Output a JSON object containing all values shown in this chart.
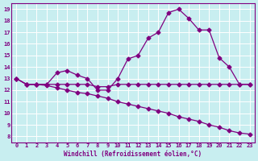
{
  "xlabel": "Windchill (Refroidissement éolien,°C)",
  "x_ticks": [
    0,
    1,
    2,
    3,
    4,
    5,
    6,
    7,
    8,
    9,
    10,
    11,
    12,
    13,
    14,
    15,
    16,
    17,
    18,
    19,
    20,
    21,
    22,
    23
  ],
  "y_ticks": [
    8,
    9,
    10,
    11,
    12,
    13,
    14,
    15,
    16,
    17,
    18,
    19
  ],
  "ylim": [
    7.5,
    19.5
  ],
  "xlim": [
    -0.5,
    23.5
  ],
  "bg_color": "#c8eef0",
  "line_color": "#800080",
  "grid_color": "#ffffff",
  "line1_x": [
    0,
    1,
    2,
    3,
    4,
    5,
    6,
    7,
    8,
    9,
    10,
    11,
    12,
    13,
    14,
    15,
    16,
    17,
    18,
    19,
    20,
    21,
    22,
    23
  ],
  "line1_y": [
    13.0,
    12.5,
    12.5,
    12.5,
    13.5,
    13.7,
    13.3,
    13.0,
    12.0,
    12.0,
    13.0,
    14.7,
    15.0,
    16.5,
    17.0,
    18.7,
    19.0,
    18.2,
    17.2,
    17.2,
    14.8,
    14.0,
    12.5,
    12.5
  ],
  "line2_x": [
    0,
    1,
    2,
    3,
    4,
    5,
    6,
    7,
    8,
    9,
    10,
    11,
    12,
    13,
    14,
    15,
    16,
    17,
    18,
    19,
    20,
    21,
    22,
    23
  ],
  "line2_y": [
    13.0,
    12.5,
    12.5,
    12.5,
    12.5,
    12.5,
    12.5,
    12.5,
    12.3,
    12.3,
    12.5,
    12.5,
    12.5,
    12.5,
    12.5,
    12.5,
    12.5,
    12.5,
    12.5,
    12.5,
    12.5,
    12.5,
    12.5,
    12.5
  ],
  "line3_x": [
    0,
    1,
    2,
    3,
    4,
    5,
    6,
    7,
    8,
    9,
    10,
    11,
    12,
    13,
    14,
    15,
    16,
    17,
    18,
    19,
    20,
    21,
    22,
    23
  ],
  "line3_y": [
    13.0,
    12.5,
    12.5,
    12.4,
    12.2,
    12.0,
    11.8,
    11.7,
    11.5,
    11.3,
    11.0,
    10.8,
    10.6,
    10.4,
    10.2,
    10.0,
    9.7,
    9.5,
    9.3,
    9.0,
    8.8,
    8.5,
    8.3,
    8.2
  ],
  "marker": "D",
  "markersize": 2.5,
  "linewidth": 0.9
}
